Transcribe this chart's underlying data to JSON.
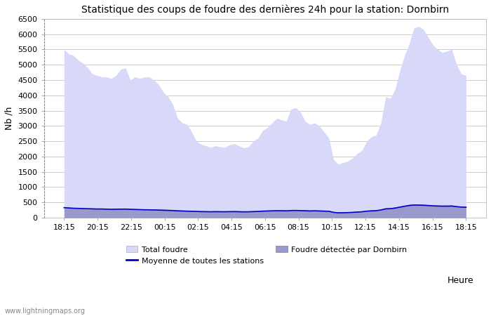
{
  "title": "Statistique des coups de foudre des dernières 24h pour la station: Dornbirn",
  "xlabel": "Heure",
  "ylabel": "Nb /h",
  "ylim": [
    0,
    6500
  ],
  "yticks": [
    0,
    500,
    1000,
    1500,
    2000,
    2500,
    3000,
    3500,
    4000,
    4500,
    5000,
    5500,
    6000,
    6500
  ],
  "background_color": "#ffffff",
  "watermark": "www.lightningmaps.org",
  "x_labels": [
    "18:15",
    "20:15",
    "22:15",
    "00:15",
    "02:15",
    "04:15",
    "06:15",
    "08:15",
    "10:15",
    "12:15",
    "14:15",
    "16:15",
    "18:15"
  ],
  "total_foudre_color": "#d8d8f8",
  "detected_foudre_color": "#9999cc",
  "moyenne_color": "#0000cc",
  "legend_labels": [
    "Total foudre",
    "Moyenne de toutes les stations",
    "Foudre détectée par Dornbirn"
  ],
  "total_foudre_y": [
    5500,
    5350,
    5300,
    5150,
    5050,
    4900,
    4700,
    4650,
    4600,
    4600,
    4550,
    4650,
    4850,
    4900,
    4500,
    4600,
    4550,
    4600,
    4600,
    4500,
    4350,
    4100,
    3950,
    3700,
    3250,
    3100,
    3050,
    2800,
    2500,
    2400,
    2350,
    2300,
    2350,
    2320,
    2300,
    2380,
    2420,
    2350,
    2280,
    2320,
    2500,
    2600,
    2850,
    2950,
    3100,
    3250,
    3200,
    3150,
    3550,
    3600,
    3450,
    3150,
    3050,
    3100,
    3000,
    2800,
    2600,
    1900,
    1750,
    1800,
    1850,
    1950,
    2100,
    2200,
    2500,
    2650,
    2700,
    3100,
    3950,
    3900,
    4200,
    4800,
    5300,
    5700,
    6200,
    6250,
    6150,
    5900,
    5650,
    5500,
    5400,
    5450,
    5500,
    5000,
    4700,
    4650
  ],
  "detected_foudre_y": [
    350,
    340,
    320,
    310,
    310,
    300,
    290,
    290,
    290,
    295,
    290,
    295,
    300,
    310,
    300,
    295,
    290,
    288,
    285,
    280,
    280,
    275,
    270,
    260,
    250,
    245,
    240,
    235,
    230,
    225,
    220,
    220,
    225,
    225,
    220,
    225,
    230,
    225,
    220,
    220,
    225,
    230,
    240,
    245,
    250,
    255,
    255,
    250,
    260,
    265,
    260,
    255,
    250,
    255,
    250,
    245,
    240,
    200,
    190,
    190,
    195,
    200,
    210,
    220,
    240,
    250,
    255,
    280,
    320,
    330,
    350,
    380,
    410,
    440,
    450,
    445,
    440,
    430,
    420,
    415,
    410,
    410,
    415,
    390,
    375,
    370
  ],
  "moyenne_y": [
    330,
    320,
    310,
    305,
    300,
    295,
    290,
    285,
    285,
    280,
    275,
    278,
    280,
    282,
    275,
    270,
    265,
    260,
    258,
    255,
    250,
    245,
    240,
    235,
    225,
    220,
    215,
    210,
    205,
    200,
    198,
    195,
    198,
    196,
    195,
    198,
    200,
    196,
    192,
    194,
    200,
    205,
    215,
    220,
    225,
    230,
    228,
    225,
    235,
    238,
    232,
    228,
    222,
    226,
    220,
    215,
    210,
    175,
    160,
    162,
    168,
    175,
    185,
    195,
    215,
    225,
    230,
    255,
    290,
    295,
    315,
    345,
    375,
    400,
    415,
    412,
    408,
    398,
    388,
    382,
    378,
    378,
    382,
    362,
    348,
    342
  ]
}
